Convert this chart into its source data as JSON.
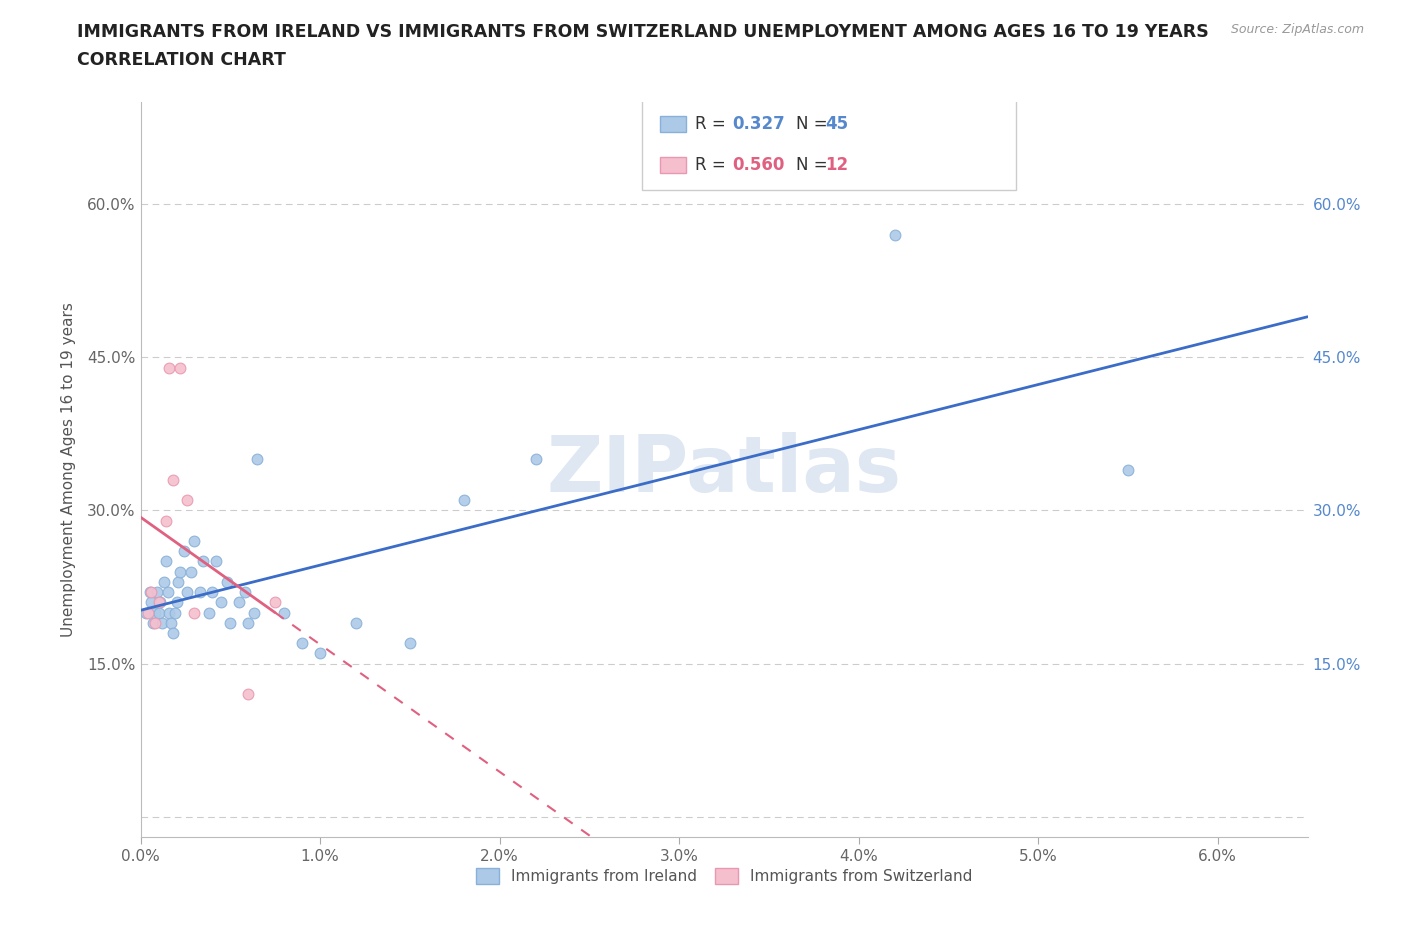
{
  "title_line1": "IMMIGRANTS FROM IRELAND VS IMMIGRANTS FROM SWITZERLAND UNEMPLOYMENT AMONG AGES 16 TO 19 YEARS",
  "title_line2": "CORRELATION CHART",
  "source": "Source: ZipAtlas.com",
  "ylabel": "Unemployment Among Ages 16 to 19 years",
  "xlim": [
    0.0,
    0.065
  ],
  "ylim": [
    -0.02,
    0.7
  ],
  "xticks": [
    0.0,
    0.01,
    0.02,
    0.03,
    0.04,
    0.05,
    0.06
  ],
  "yticks": [
    0.0,
    0.15,
    0.3,
    0.45,
    0.6
  ],
  "xticklabels": [
    "0.0%",
    "1.0%",
    "2.0%",
    "3.0%",
    "4.0%",
    "5.0%",
    "6.0%"
  ],
  "yticklabels_left": [
    "",
    "15.0%",
    "30.0%",
    "45.0%",
    "60.0%"
  ],
  "yticklabels_right": [
    "",
    "15.0%",
    "30.0%",
    "45.0%",
    "60.0%"
  ],
  "ireland_color": "#adc9e8",
  "ireland_edge_color": "#88b0d8",
  "switzerland_color": "#f5bfce",
  "switzerland_edge_color": "#e898b0",
  "ireland_line_color": "#3b6cc7",
  "switzerland_line_color": "#e06080",
  "ireland_R": 0.327,
  "ireland_N": 45,
  "switzerland_R": 0.56,
  "switzerland_N": 12,
  "watermark": "ZIPatlas",
  "ireland_scatter_x": [
    0.0003,
    0.0005,
    0.0006,
    0.0007,
    0.0008,
    0.0009,
    0.001,
    0.0011,
    0.0012,
    0.0013,
    0.0014,
    0.0015,
    0.0016,
    0.0017,
    0.0018,
    0.0019,
    0.002,
    0.0021,
    0.0022,
    0.0024,
    0.0026,
    0.0028,
    0.003,
    0.0033,
    0.0035,
    0.0038,
    0.004,
    0.0042,
    0.0045,
    0.0048,
    0.005,
    0.0055,
    0.0058,
    0.006,
    0.0063,
    0.0065,
    0.008,
    0.009,
    0.01,
    0.012,
    0.015,
    0.018,
    0.022,
    0.042,
    0.055
  ],
  "ireland_scatter_y": [
    0.2,
    0.22,
    0.21,
    0.19,
    0.2,
    0.22,
    0.2,
    0.21,
    0.19,
    0.23,
    0.25,
    0.22,
    0.2,
    0.19,
    0.18,
    0.2,
    0.21,
    0.23,
    0.24,
    0.26,
    0.22,
    0.24,
    0.27,
    0.22,
    0.25,
    0.2,
    0.22,
    0.25,
    0.21,
    0.23,
    0.19,
    0.21,
    0.22,
    0.19,
    0.2,
    0.35,
    0.2,
    0.17,
    0.16,
    0.19,
    0.17,
    0.31,
    0.35,
    0.57,
    0.34
  ],
  "switzerland_scatter_x": [
    0.0004,
    0.0006,
    0.0008,
    0.001,
    0.0014,
    0.0016,
    0.0018,
    0.0022,
    0.0026,
    0.003,
    0.006,
    0.0075
  ],
  "switzerland_scatter_y": [
    0.2,
    0.22,
    0.19,
    0.21,
    0.29,
    0.44,
    0.33,
    0.44,
    0.31,
    0.2,
    0.12,
    0.21
  ],
  "dot_size": 60
}
